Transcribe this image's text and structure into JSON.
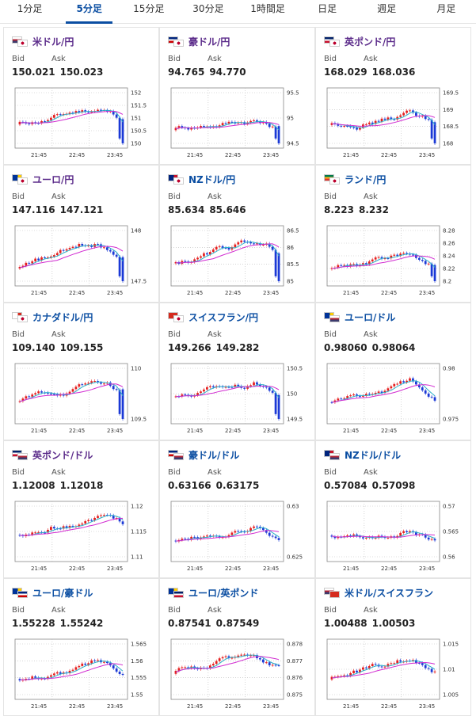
{
  "tabs": [
    {
      "label": "1分足"
    },
    {
      "label": "5分足",
      "active": true
    },
    {
      "label": "15分足"
    },
    {
      "label": "30分足"
    },
    {
      "label": "1時間足"
    },
    {
      "label": "日足"
    },
    {
      "label": "週足"
    },
    {
      "label": "月足"
    }
  ],
  "colors": {
    "up": "#e51f1f",
    "down": "#1b39d6",
    "ma_short": "#2bb0c8",
    "ma_long": "#d12bd1",
    "tab_active": "#0b4ea2"
  },
  "labels": {
    "bid": "Bid",
    "ask": "Ask"
  },
  "cards": [
    {
      "pair": "米ドル/円",
      "flag": [
        "us",
        "jp"
      ],
      "bid": "150.021",
      "ask": "150.023",
      "yticks": [
        "152",
        "151.5",
        "151",
        "150.5",
        "150"
      ],
      "xticks": [
        "21:45",
        "22:45",
        "23:45"
      ],
      "style": "purple"
    },
    {
      "pair": "豪ドル/円",
      "flag": [
        "au",
        "jp"
      ],
      "bid": "94.765",
      "ask": "94.770",
      "yticks": [
        "95.5",
        "95",
        "94.5"
      ],
      "xticks": [
        "21:45",
        "22:45",
        "23:45"
      ],
      "style": "purple"
    },
    {
      "pair": "英ポンド/円",
      "flag": [
        "gb",
        "jp"
      ],
      "bid": "168.029",
      "ask": "168.036",
      "yticks": [
        "169.5",
        "169",
        "168.5",
        "168"
      ],
      "xticks": [
        "21:45",
        "22:45",
        "23:45"
      ],
      "style": "purple"
    },
    {
      "pair": "ユーロ/円",
      "flag": [
        "eu",
        "jp"
      ],
      "bid": "147.116",
      "ask": "147.121",
      "yticks": [
        "148",
        "147.5"
      ],
      "xticks": [
        "21:45",
        "22:45",
        "23:45"
      ],
      "style": "purple"
    },
    {
      "pair": "NZドル/円",
      "flag": [
        "nz",
        "jp"
      ],
      "bid": "85.634",
      "ask": "85.646",
      "yticks": [
        "86.5",
        "86",
        "85.5",
        "85"
      ],
      "xticks": [
        "21:45",
        "22:45",
        "23:45"
      ],
      "style": "blue"
    },
    {
      "pair": "ランド/円",
      "flag": [
        "za",
        "jp"
      ],
      "bid": "8.223",
      "ask": "8.232",
      "yticks": [
        "8.28",
        "8.26",
        "8.24",
        "8.22",
        "8.2"
      ],
      "xticks": [
        "21:45",
        "22:45",
        "23:45"
      ],
      "style": "blue"
    },
    {
      "pair": "カナダドル/円",
      "flag": [
        "ca",
        "jp"
      ],
      "bid": "109.140",
      "ask": "109.155",
      "yticks": [
        "110",
        "109.5"
      ],
      "xticks": [
        "21:45",
        "22:45",
        "23:45"
      ],
      "style": "blue"
    },
    {
      "pair": "スイスフラン/円",
      "flag": [
        "ch",
        "jp"
      ],
      "bid": "149.266",
      "ask": "149.282",
      "yticks": [
        "150.5",
        "150",
        "149.5"
      ],
      "xticks": [
        "21:45",
        "22:45",
        "23:45"
      ],
      "style": "blue"
    },
    {
      "pair": "ユーロ/ドル",
      "flag": [
        "eu",
        "us"
      ],
      "bid": "0.98060",
      "ask": "0.98064",
      "yticks": [
        "0.98",
        "0.975"
      ],
      "xticks": [
        "21:45",
        "22:45",
        "23:45"
      ],
      "style": "blue"
    },
    {
      "pair": "英ポンド/ドル",
      "flag": [
        "gb",
        "us"
      ],
      "bid": "1.12008",
      "ask": "1.12018",
      "yticks": [
        "1.12",
        "1.115",
        "1.11"
      ],
      "xticks": [
        "21:45",
        "22:45",
        "23:45"
      ],
      "style": "purple"
    },
    {
      "pair": "豪ドル/ドル",
      "flag": [
        "au",
        "us"
      ],
      "bid": "0.63166",
      "ask": "0.63175",
      "yticks": [
        "0.63",
        "0.625"
      ],
      "xticks": [
        "21:45",
        "22:45",
        "23:45"
      ],
      "style": "blue"
    },
    {
      "pair": "NZドル/ドル",
      "flag": [
        "nz",
        "us"
      ],
      "bid": "0.57084",
      "ask": "0.57098",
      "yticks": [
        "0.57",
        "0.565",
        "0.56"
      ],
      "xticks": [
        "21:45",
        "22:45",
        "23:45"
      ],
      "style": "blue"
    },
    {
      "pair": "ユーロ/豪ドル",
      "flag": [
        "eu",
        "au"
      ],
      "bid": "1.55228",
      "ask": "1.55242",
      "yticks": [
        "1.565",
        "1.56",
        "1.555",
        "1.55"
      ],
      "xticks": [
        "21:45",
        "22:45",
        "23:45"
      ],
      "style": "blue"
    },
    {
      "pair": "ユーロ/英ポンド",
      "flag": [
        "eu",
        "gb"
      ],
      "bid": "0.87541",
      "ask": "0.87549",
      "yticks": [
        "0.878",
        "0.877",
        "0.876",
        "0.875"
      ],
      "xticks": [
        "21:45",
        "22:45",
        "23:45"
      ],
      "style": "blue"
    },
    {
      "pair": "米ドル/スイスフラン",
      "flag": [
        "us",
        "ch"
      ],
      "bid": "1.00488",
      "ask": "1.00503",
      "yticks": [
        "1.015",
        "1.01",
        "1.005"
      ],
      "xticks": [
        "21:45",
        "22:45",
        "23:45"
      ],
      "style": "blue"
    }
  ]
}
